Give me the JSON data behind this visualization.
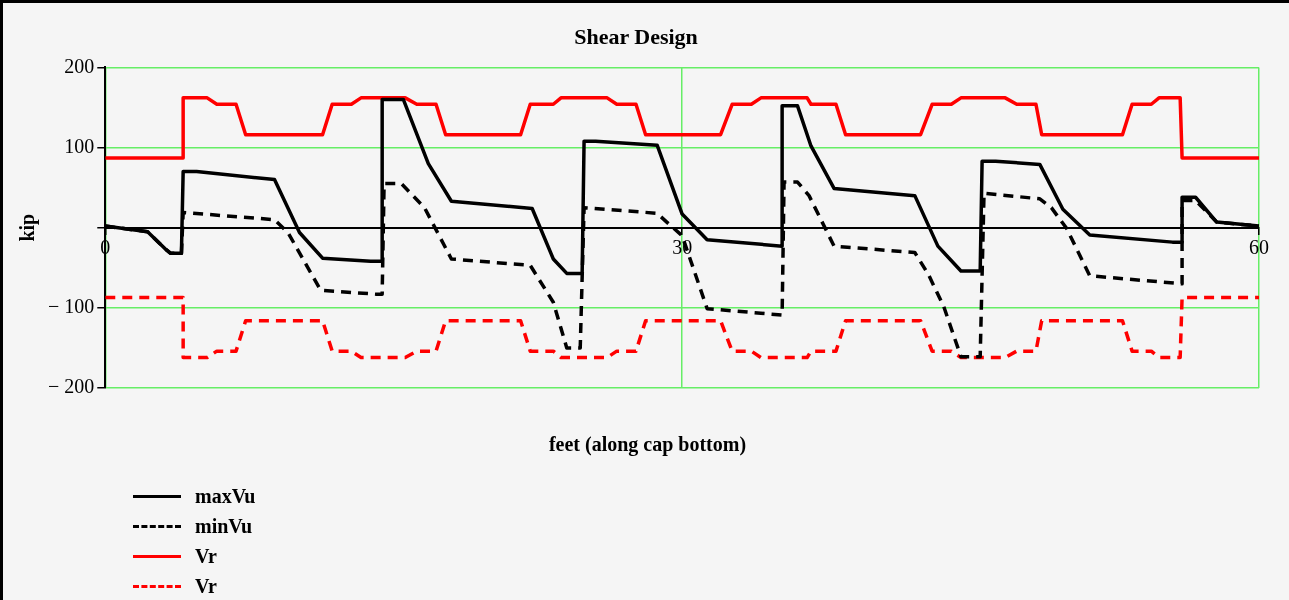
{
  "chart_data": {
    "type": "line",
    "title": "Shear Design",
    "xlabel": "feet (along cap bottom)",
    "ylabel": "kip",
    "xlim": [
      0,
      60
    ],
    "xticks": [
      0,
      30,
      60
    ],
    "ylim": [
      -200,
      200
    ],
    "yticks": [
      200,
      100,
      {
        "value": 0,
        "label": null
      },
      {
        "value": -100,
        "label": "− 100"
      },
      {
        "value": -200,
        "label": "− 200"
      }
    ],
    "grid": true,
    "legend": "bottom left",
    "marker": "none",
    "series": [
      {
        "name": "maxVu",
        "color": "#000000",
        "line_style": "solid",
        "x": [
          0,
          2.2,
          3.1,
          3.4,
          3.96,
          4.05,
          4.75,
          8.8,
          10.1,
          11.3,
          13.8,
          14.4,
          14.4,
          15.5,
          16.8,
          18.0,
          22.2,
          23.3,
          24.0,
          24.8,
          24.9,
          25.5,
          28.7,
          30.0,
          31.3,
          35.2,
          35.2,
          36.0,
          36.7,
          37.9,
          42.1,
          43.3,
          44.5,
          45.5,
          45.6,
          46.3,
          48.6,
          49.8,
          51.2,
          55.5,
          56.0,
          56.0,
          56.7,
          57.8,
          60
        ],
        "values": [
          2,
          -5,
          -26,
          -32,
          -32,
          70,
          70,
          60,
          -6,
          -38,
          -42,
          -42,
          160,
          160,
          80,
          33,
          24,
          -39,
          -57,
          -57,
          108,
          108,
          103,
          17,
          -15,
          -23,
          152,
          152,
          102,
          49,
          40,
          -23,
          -54,
          -54,
          83,
          83,
          79,
          23,
          -9,
          -18,
          -18,
          38,
          38,
          7,
          2
        ]
      },
      {
        "name": "minVu",
        "color": "#000000",
        "line_style": "dashed",
        "x": [
          0,
          2.2,
          3.1,
          3.4,
          3.96,
          4.05,
          8.8,
          9.5,
          11.2,
          14.1,
          14.4,
          14.5,
          15.4,
          16.6,
          18.0,
          22.1,
          23.3,
          24.0,
          24.7,
          24.9,
          28.7,
          29.2,
          30.0,
          31.3,
          35.2,
          35.3,
          36.0,
          36.6,
          37.9,
          42.1,
          42.8,
          43.6,
          44.5,
          45.5,
          45.7,
          48.6,
          49.2,
          50.0,
          51.2,
          56.0,
          56.0,
          56.7,
          57.8,
          60
        ],
        "values": [
          2,
          -5,
          -26,
          -32,
          -32,
          19,
          10,
          -6,
          -78,
          -83,
          -83,
          55,
          55,
          25,
          -39,
          -47,
          -93,
          -150,
          -150,
          25,
          18,
          7,
          -10,
          -101,
          -109,
          57,
          57,
          40,
          -23,
          -31,
          -58,
          -98,
          -161,
          -161,
          43,
          36,
          25,
          -1,
          -60,
          -70,
          34,
          34,
          7,
          2
        ]
      },
      {
        "name": "Vr",
        "color": "#ff0000",
        "line_style": "solid",
        "x": [
          0,
          4.05,
          4.05,
          5.3,
          5.8,
          6.8,
          7.3,
          11.3,
          11.8,
          12.8,
          13.3,
          15.6,
          16.2,
          17.2,
          17.7,
          21.6,
          22.1,
          23.3,
          23.7,
          26.1,
          26.6,
          27.6,
          28.1,
          32.0,
          32.6,
          33.6,
          34.1,
          36.5,
          36.7,
          38.0,
          38.5,
          42.4,
          43.0,
          44.0,
          44.5,
          46.8,
          47.4,
          48.4,
          48.7,
          52.9,
          53.4,
          54.4,
          54.8,
          55.9,
          56.0,
          60
        ],
        "values": [
          87,
          87,
          162,
          162,
          154,
          154,
          116,
          116,
          154,
          154,
          162,
          162,
          154,
          154,
          116,
          116,
          154,
          154,
          162,
          162,
          154,
          154,
          116,
          116,
          154,
          154,
          162,
          162,
          154,
          154,
          116,
          116,
          154,
          154,
          162,
          162,
          154,
          154,
          116,
          116,
          154,
          154,
          162,
          162,
          87,
          87
        ]
      },
      {
        "name": "Vr",
        "color": "#ff0000",
        "line_style": "dashed",
        "x": [
          0,
          4.05,
          4.05,
          5.3,
          5.8,
          6.8,
          7.3,
          11.3,
          11.8,
          12.8,
          13.3,
          15.6,
          16.2,
          17.2,
          17.7,
          21.6,
          22.1,
          23.3,
          23.7,
          26.1,
          26.6,
          27.6,
          28.1,
          32.0,
          32.6,
          33.6,
          34.1,
          36.5,
          36.7,
          38.0,
          38.5,
          42.4,
          43.0,
          44.0,
          44.5,
          46.8,
          47.4,
          48.4,
          48.7,
          52.9,
          53.4,
          54.4,
          54.8,
          55.9,
          56.0,
          60
        ],
        "values": [
          -87,
          -87,
          -162,
          -162,
          -154,
          -154,
          -116,
          -116,
          -154,
          -154,
          -162,
          -162,
          -154,
          -154,
          -116,
          -116,
          -154,
          -154,
          -162,
          -162,
          -154,
          -154,
          -116,
          -116,
          -154,
          -154,
          -162,
          -162,
          -154,
          -154,
          -116,
          -116,
          -154,
          -154,
          -162,
          -162,
          -154,
          -154,
          -116,
          -116,
          -154,
          -154,
          -162,
          -162,
          -87,
          -87
        ]
      }
    ]
  }
}
